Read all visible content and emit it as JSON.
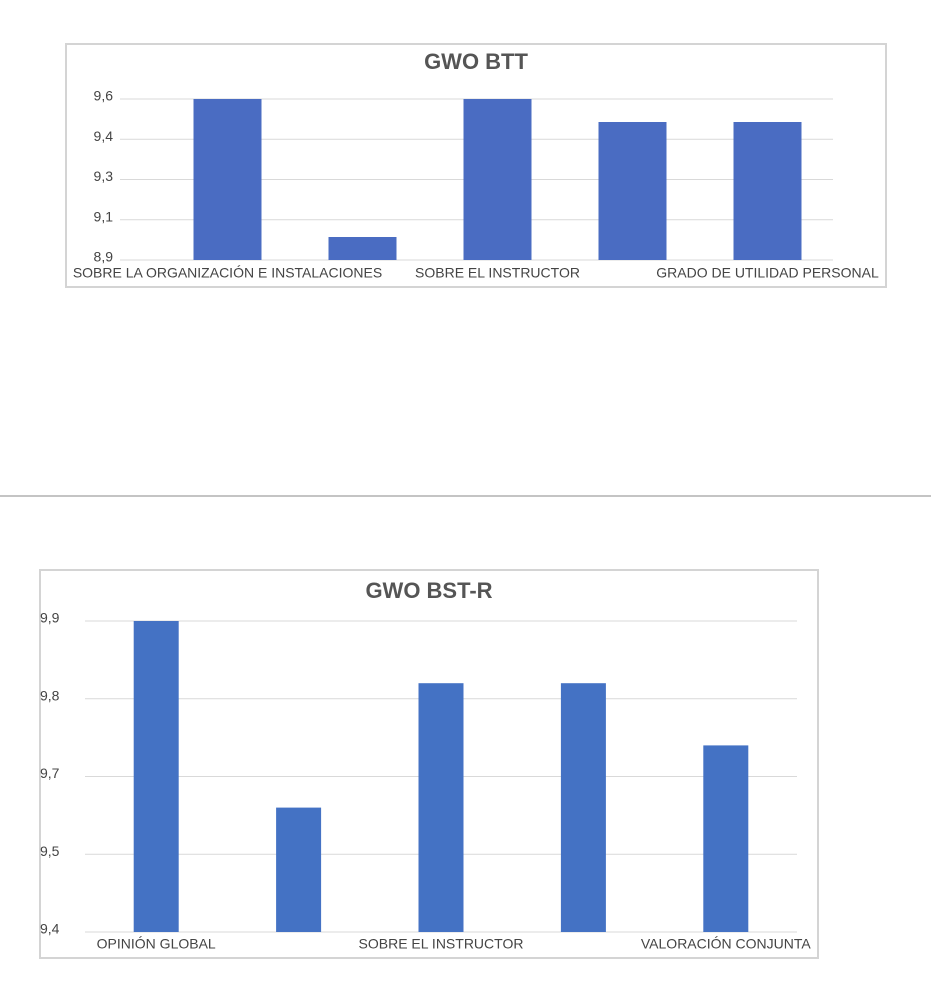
{
  "chart_data": [
    {
      "type": "bar",
      "title": "GWO BTT",
      "categories": [
        "SOBRE LA ORGANIZACIÓN E INSTALACIONES",
        null,
        "SOBRE EL INSTRUCTOR",
        null,
        "GRADO DE UTILIDAD PERSONAL"
      ],
      "values": [
        9.6,
        9.0,
        9.6,
        9.5,
        9.5
      ],
      "color": "#4a6cc2",
      "ylim": [
        8.9,
        9.6
      ],
      "yticks": [
        {
          "value": 8.9,
          "label": "8,9"
        },
        {
          "value": 9.075,
          "label": "9,1"
        },
        {
          "value": 9.25,
          "label": "9,3"
        },
        {
          "value": 9.425,
          "label": "9,4"
        },
        {
          "value": 9.6,
          "label": "9,6"
        }
      ],
      "grid": true
    },
    {
      "type": "bar",
      "title": "GWO BST-R",
      "categories": [
        "OPINIÓN GLOBAL",
        null,
        "SOBRE EL INSTRUCTOR",
        null,
        "VALORACIÓN CONJUNTA"
      ],
      "values": [
        9.9,
        9.6,
        9.8,
        9.8,
        9.7
      ],
      "color": "#4472c4",
      "ylim": [
        9.4,
        9.9
      ],
      "yticks": [
        {
          "value": 9.4,
          "label": "9,4"
        },
        {
          "value": 9.525,
          "label": "9,5"
        },
        {
          "value": 9.65,
          "label": "9,7"
        },
        {
          "value": 9.775,
          "label": "9,8"
        },
        {
          "value": 9.9,
          "label": "9,9"
        }
      ],
      "grid": true
    }
  ]
}
